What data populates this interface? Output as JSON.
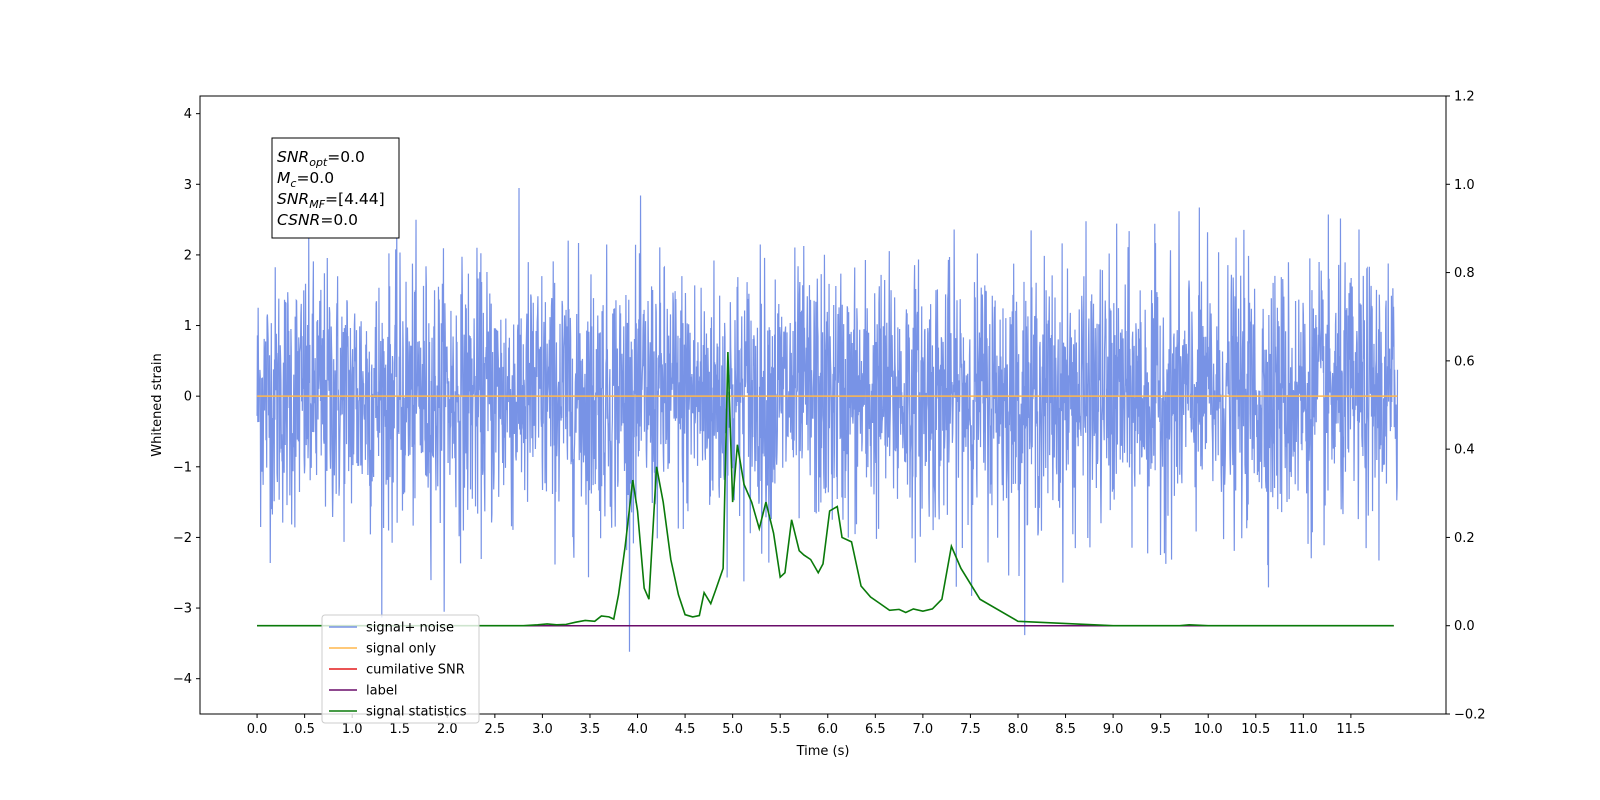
{
  "chart_data": {
    "type": "line",
    "xlabel": "Time (s)",
    "ylabel": "Whitened strain",
    "xlim": [
      -0.6,
      12.5
    ],
    "ylim": [
      -4.5,
      4.25
    ],
    "y2lim": [
      -0.2,
      1.2
    ],
    "x_ticks": [
      "0.0",
      "0.5",
      "1.0",
      "1.5",
      "2.0",
      "2.5",
      "3.0",
      "3.5",
      "4.0",
      "4.5",
      "5.0",
      "5.5",
      "6.0",
      "6.5",
      "7.0",
      "7.5",
      "8.0",
      "8.5",
      "9.0",
      "9.5",
      "10.0",
      "10.5",
      "11.0",
      "11.5"
    ],
    "y_ticks": [
      "4",
      "3",
      "2",
      "1",
      "0",
      "−1",
      "−2",
      "−3",
      "−4"
    ],
    "y2_ticks": [
      "1.2",
      "1.0",
      "0.8",
      "0.6",
      "0.4",
      "0.2",
      "0.0",
      "−0.2"
    ],
    "grid": false,
    "legend_position": "lower-left",
    "annotation_lines": [
      {
        "sym": "SNR",
        "sub": "opt",
        "rest": "=0.0"
      },
      {
        "sym": "M",
        "sub": "c",
        "rest": "=0.0"
      },
      {
        "sym": "SNR",
        "sub": "MF",
        "rest": "=[4.44]"
      },
      {
        "sym": "CSNR",
        "sub": "",
        "rest": "=0.0"
      }
    ],
    "series": [
      {
        "name": "signal+ noise",
        "color": "#7893e6",
        "axis": "left",
        "kind": "noise",
        "t_start": 0.0,
        "t_end": 11.99,
        "mean": 0,
        "std": 0.9
      },
      {
        "name": "signal only",
        "color": "#ffb74d",
        "axis": "left",
        "t_start": 0.0,
        "t_end": 11.99,
        "value": 0.0
      },
      {
        "name": "cumilative SNR",
        "color": "#e41a1c",
        "axis": "right",
        "t_start": 0.0,
        "t_end": 11.95,
        "value": 0.0
      },
      {
        "name": "label",
        "color": "#6a0d6a",
        "axis": "right",
        "t_start": 0.0,
        "t_end": 11.95,
        "value": 0.0
      },
      {
        "name": "signal statistics",
        "color": "#0a7a0a",
        "axis": "right",
        "x": [
          0.0,
          0.5,
          1.0,
          1.5,
          2.0,
          2.5,
          2.8,
          2.95,
          3.05,
          3.15,
          3.25,
          3.35,
          3.45,
          3.55,
          3.62,
          3.7,
          3.75,
          3.8,
          3.87,
          3.95,
          4.0,
          4.07,
          4.12,
          4.2,
          4.27,
          4.35,
          4.43,
          4.5,
          4.58,
          4.65,
          4.7,
          4.77,
          4.82,
          4.9,
          4.95,
          5.0,
          5.05,
          5.12,
          5.2,
          5.28,
          5.35,
          5.43,
          5.5,
          5.55,
          5.62,
          5.7,
          5.75,
          5.82,
          5.9,
          5.95,
          6.02,
          6.1,
          6.15,
          6.25,
          6.35,
          6.45,
          6.55,
          6.65,
          6.75,
          6.82,
          6.9,
          7.0,
          7.1,
          7.2,
          7.3,
          7.4,
          7.6,
          8.0,
          9.0,
          9.6,
          9.7,
          9.8,
          10.0,
          11.0,
          11.95
        ],
        "y": [
          0.0,
          0.0,
          0.0,
          0.0,
          0.0,
          0.0,
          0.0,
          0.002,
          0.004,
          0.002,
          0.003,
          0.008,
          0.012,
          0.01,
          0.022,
          0.02,
          0.015,
          0.07,
          0.18,
          0.33,
          0.26,
          0.085,
          0.06,
          0.36,
          0.28,
          0.15,
          0.07,
          0.025,
          0.02,
          0.023,
          0.075,
          0.05,
          0.08,
          0.13,
          0.62,
          0.28,
          0.41,
          0.32,
          0.28,
          0.22,
          0.28,
          0.21,
          0.11,
          0.12,
          0.24,
          0.17,
          0.16,
          0.15,
          0.12,
          0.14,
          0.26,
          0.27,
          0.2,
          0.19,
          0.09,
          0.065,
          0.05,
          0.035,
          0.037,
          0.03,
          0.038,
          0.033,
          0.038,
          0.06,
          0.18,
          0.13,
          0.06,
          0.01,
          0.0,
          0.0,
          0.0,
          0.002,
          0.0,
          0.0,
          0.0
        ]
      }
    ]
  }
}
